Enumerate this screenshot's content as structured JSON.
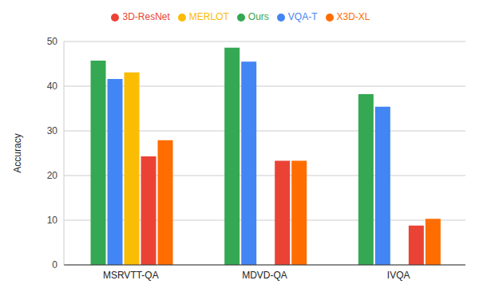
{
  "chart_data": {
    "type": "bar",
    "y_label": "Accuracy",
    "categories": [
      "MSRVTT-QA",
      "MDVD-QA",
      "IVQA"
    ],
    "series": [
      {
        "name": "Ours",
        "color": "#34a853",
        "values": [
          45.7,
          48.6,
          38.2
        ]
      },
      {
        "name": "VQA-T",
        "color": "#4285f4",
        "values": [
          41.6,
          45.5,
          35.4
        ]
      },
      {
        "name": "MERLOT",
        "color": "#fbbc04",
        "values": [
          43.1,
          null,
          null
        ]
      },
      {
        "name": "3D-ResNet",
        "color": "#ea4335",
        "values": [
          24.3,
          23.3,
          8.8
        ]
      },
      {
        "name": "X3D-XL",
        "color": "#ff6d01",
        "values": [
          27.9,
          23.3,
          10.3
        ]
      }
    ],
    "ylim": [
      0,
      50
    ],
    "yticks": [
      0,
      10,
      20,
      30,
      40,
      50
    ],
    "grid": true,
    "legend": "top"
  }
}
